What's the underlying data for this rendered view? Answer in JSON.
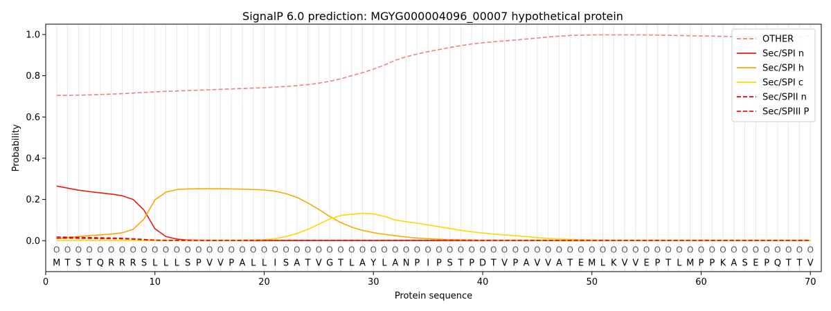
{
  "chart_data": {
    "type": "line",
    "title": "SignalP 6.0 prediction: MGYG000004096_00007 hypothetical protein",
    "xlabel": "Protein sequence",
    "ylabel": "Probability",
    "xlim": [
      0,
      71
    ],
    "ylim": [
      -0.15,
      1.05
    ],
    "x_ticks": [
      0,
      10,
      20,
      30,
      40,
      50,
      60,
      70
    ],
    "y_ticks": [
      0.0,
      0.2,
      0.4,
      0.6,
      0.8,
      1.0
    ],
    "x_tick_labels": [
      "0",
      "10",
      "20",
      "30",
      "40",
      "50",
      "60",
      "70"
    ],
    "y_tick_labels": [
      "0.0",
      "0.2",
      "0.4",
      "0.6",
      "0.8",
      "1.0"
    ],
    "grid": "vertical lines at each residue",
    "legend_position": "top-right",
    "sequence": [
      "M",
      "T",
      "S",
      "T",
      "Q",
      "R",
      "R",
      "R",
      "S",
      "L",
      "L",
      "L",
      "S",
      "P",
      "V",
      "V",
      "P",
      "A",
      "L",
      "L",
      "I",
      "S",
      "A",
      "T",
      "V",
      "G",
      "T",
      "L",
      "A",
      "Y",
      "L",
      "A",
      "N",
      "P",
      "I",
      "P",
      "S",
      "T",
      "P",
      "D",
      "T",
      "V",
      "P",
      "A",
      "V",
      "V",
      "A",
      "T",
      "E",
      "M",
      "L",
      "K",
      "V",
      "V",
      "E",
      "P",
      "T",
      "L",
      "M",
      "P",
      "P",
      "K",
      "A",
      "S",
      "E",
      "P",
      "Q",
      "T",
      "T",
      "V"
    ],
    "region_labels": [
      "O",
      "O",
      "O",
      "O",
      "O",
      "O",
      "O",
      "O",
      "O",
      "O",
      "O",
      "O",
      "O",
      "O",
      "O",
      "O",
      "O",
      "O",
      "O",
      "O",
      "O",
      "O",
      "O",
      "O",
      "O",
      "O",
      "O",
      "O",
      "O",
      "O",
      "O",
      "O",
      "O",
      "O",
      "O",
      "O",
      "O",
      "O",
      "O",
      "O",
      "O",
      "O",
      "O",
      "O",
      "O",
      "O",
      "O",
      "O",
      "O",
      "O",
      "O",
      "O",
      "O",
      "O",
      "O",
      "O",
      "O",
      "O",
      "O",
      "O",
      "O",
      "O",
      "O",
      "O",
      "O",
      "O",
      "O",
      "O",
      "O",
      "O"
    ],
    "series": [
      {
        "name": "OTHER",
        "color": "#f08080",
        "dash": "dashed",
        "values": [
          0.705,
          0.705,
          0.706,
          0.707,
          0.709,
          0.711,
          0.713,
          0.716,
          0.719,
          0.722,
          0.724,
          0.726,
          0.728,
          0.73,
          0.732,
          0.734,
          0.736,
          0.738,
          0.74,
          0.742,
          0.745,
          0.748,
          0.752,
          0.757,
          0.764,
          0.773,
          0.785,
          0.8,
          0.815,
          0.832,
          0.852,
          0.875,
          0.892,
          0.905,
          0.917,
          0.927,
          0.937,
          0.946,
          0.954,
          0.96,
          0.965,
          0.969,
          0.973,
          0.978,
          0.983,
          0.988,
          0.992,
          0.995,
          0.997,
          0.998,
          0.998,
          0.998,
          0.998,
          0.998,
          0.998,
          0.997,
          0.996,
          0.995,
          0.994,
          0.993,
          0.992,
          0.991,
          0.99,
          0.989,
          0.988,
          0.987,
          0.987,
          0.988,
          0.99,
          0.993
        ]
      },
      {
        "name": "Sec/SPI n",
        "color": "#e8190f",
        "dash": "solid",
        "values": [
          0.265,
          0.255,
          0.245,
          0.238,
          0.232,
          0.226,
          0.218,
          0.2,
          0.148,
          0.058,
          0.02,
          0.008,
          0.003,
          0.002,
          0.001,
          0.001,
          0.001,
          0.001,
          0.001,
          0.001,
          0.001,
          0.001,
          0.001,
          0.001,
          0.001,
          0.001,
          0.001,
          0.001,
          0.001,
          0.001,
          0.001,
          0.001,
          0.001,
          0.001,
          0.001,
          0.001,
          0.001,
          0.001,
          0.001,
          0.001,
          0.001,
          0.001,
          0.001,
          0.001,
          0.001,
          0.001,
          0.001,
          0.001,
          0.001,
          0.001,
          0.001,
          0.001,
          0.001,
          0.001,
          0.001,
          0.001,
          0.001,
          0.001,
          0.001,
          0.001,
          0.001,
          0.001,
          0.001,
          0.001,
          0.001,
          0.001,
          0.001,
          0.001,
          0.001,
          0.001
        ]
      },
      {
        "name": "Sec/SPI h",
        "color": "#ffa500",
        "dash": "solid",
        "values": [
          0.01,
          0.015,
          0.02,
          0.025,
          0.028,
          0.032,
          0.038,
          0.055,
          0.105,
          0.198,
          0.235,
          0.248,
          0.251,
          0.252,
          0.252,
          0.252,
          0.251,
          0.25,
          0.248,
          0.246,
          0.24,
          0.228,
          0.21,
          0.183,
          0.152,
          0.117,
          0.088,
          0.066,
          0.05,
          0.039,
          0.031,
          0.024,
          0.018,
          0.013,
          0.01,
          0.007,
          0.005,
          0.004,
          0.003,
          0.002,
          0.002,
          0.001,
          0.001,
          0.001,
          0.001,
          0.001,
          0.001,
          0.001,
          0.001,
          0.001,
          0.001,
          0.001,
          0.001,
          0.001,
          0.001,
          0.001,
          0.001,
          0.001,
          0.001,
          0.001,
          0.001,
          0.001,
          0.001,
          0.001,
          0.001,
          0.001,
          0.001,
          0.001,
          0.001,
          0.001
        ]
      },
      {
        "name": "Sec/SPI c",
        "color": "#ffd700",
        "dash": "solid",
        "values": [
          0.001,
          0.001,
          0.001,
          0.001,
          0.001,
          0.001,
          0.001,
          0.001,
          0.001,
          0.001,
          0.001,
          0.001,
          0.001,
          0.001,
          0.001,
          0.001,
          0.001,
          0.002,
          0.003,
          0.005,
          0.01,
          0.02,
          0.035,
          0.055,
          0.08,
          0.105,
          0.122,
          0.128,
          0.133,
          0.13,
          0.118,
          0.1,
          0.092,
          0.085,
          0.076,
          0.068,
          0.059,
          0.05,
          0.043,
          0.037,
          0.032,
          0.028,
          0.024,
          0.02,
          0.015,
          0.011,
          0.008,
          0.006,
          0.004,
          0.003,
          0.002,
          0.002,
          0.001,
          0.001,
          0.001,
          0.001,
          0.001,
          0.001,
          0.001,
          0.001,
          0.001,
          0.001,
          0.001,
          0.001,
          0.001,
          0.001,
          0.001,
          0.001,
          0.001,
          0.001
        ]
      },
      {
        "name": "Sec/SPII n",
        "color": "#d90000",
        "dash": "dashed",
        "values": [
          0.018,
          0.017,
          0.016,
          0.015,
          0.014,
          0.013,
          0.012,
          0.009,
          0.006,
          0.003,
          0.002,
          0.002,
          0.002,
          0.002,
          0.002,
          0.002,
          0.002,
          0.002,
          0.002,
          0.002,
          0.002,
          0.002,
          0.002,
          0.002,
          0.002,
          0.002,
          0.002,
          0.002,
          0.002,
          0.002,
          0.002,
          0.002,
          0.002,
          0.002,
          0.002,
          0.002,
          0.002,
          0.002,
          0.002,
          0.002,
          0.002,
          0.002,
          0.002,
          0.002,
          0.002,
          0.002,
          0.002,
          0.002,
          0.002,
          0.002,
          0.002,
          0.002,
          0.002,
          0.002,
          0.002,
          0.002,
          0.002,
          0.002,
          0.002,
          0.002,
          0.002,
          0.002,
          0.002,
          0.002,
          0.002,
          0.002,
          0.002,
          0.002,
          0.002,
          0.002
        ]
      },
      {
        "name": "Sec/SPIII P",
        "color": "#ee1111",
        "dash": "dashed",
        "values": [
          0.012,
          0.012,
          0.011,
          0.011,
          0.01,
          0.01,
          0.009,
          0.007,
          0.004,
          0.002,
          0.001,
          0.001,
          0.001,
          0.001,
          0.001,
          0.001,
          0.001,
          0.001,
          0.001,
          0.001,
          0.001,
          0.001,
          0.001,
          0.001,
          0.001,
          0.001,
          0.001,
          0.001,
          0.001,
          0.001,
          0.001,
          0.001,
          0.001,
          0.001,
          0.001,
          0.001,
          0.001,
          0.001,
          0.001,
          0.001,
          0.001,
          0.001,
          0.001,
          0.001,
          0.001,
          0.001,
          0.001,
          0.001,
          0.001,
          0.001,
          0.001,
          0.001,
          0.001,
          0.001,
          0.001,
          0.001,
          0.001,
          0.001,
          0.001,
          0.001,
          0.001,
          0.001,
          0.001,
          0.001,
          0.001,
          0.001,
          0.001,
          0.001,
          0.001,
          0.001
        ]
      }
    ]
  }
}
